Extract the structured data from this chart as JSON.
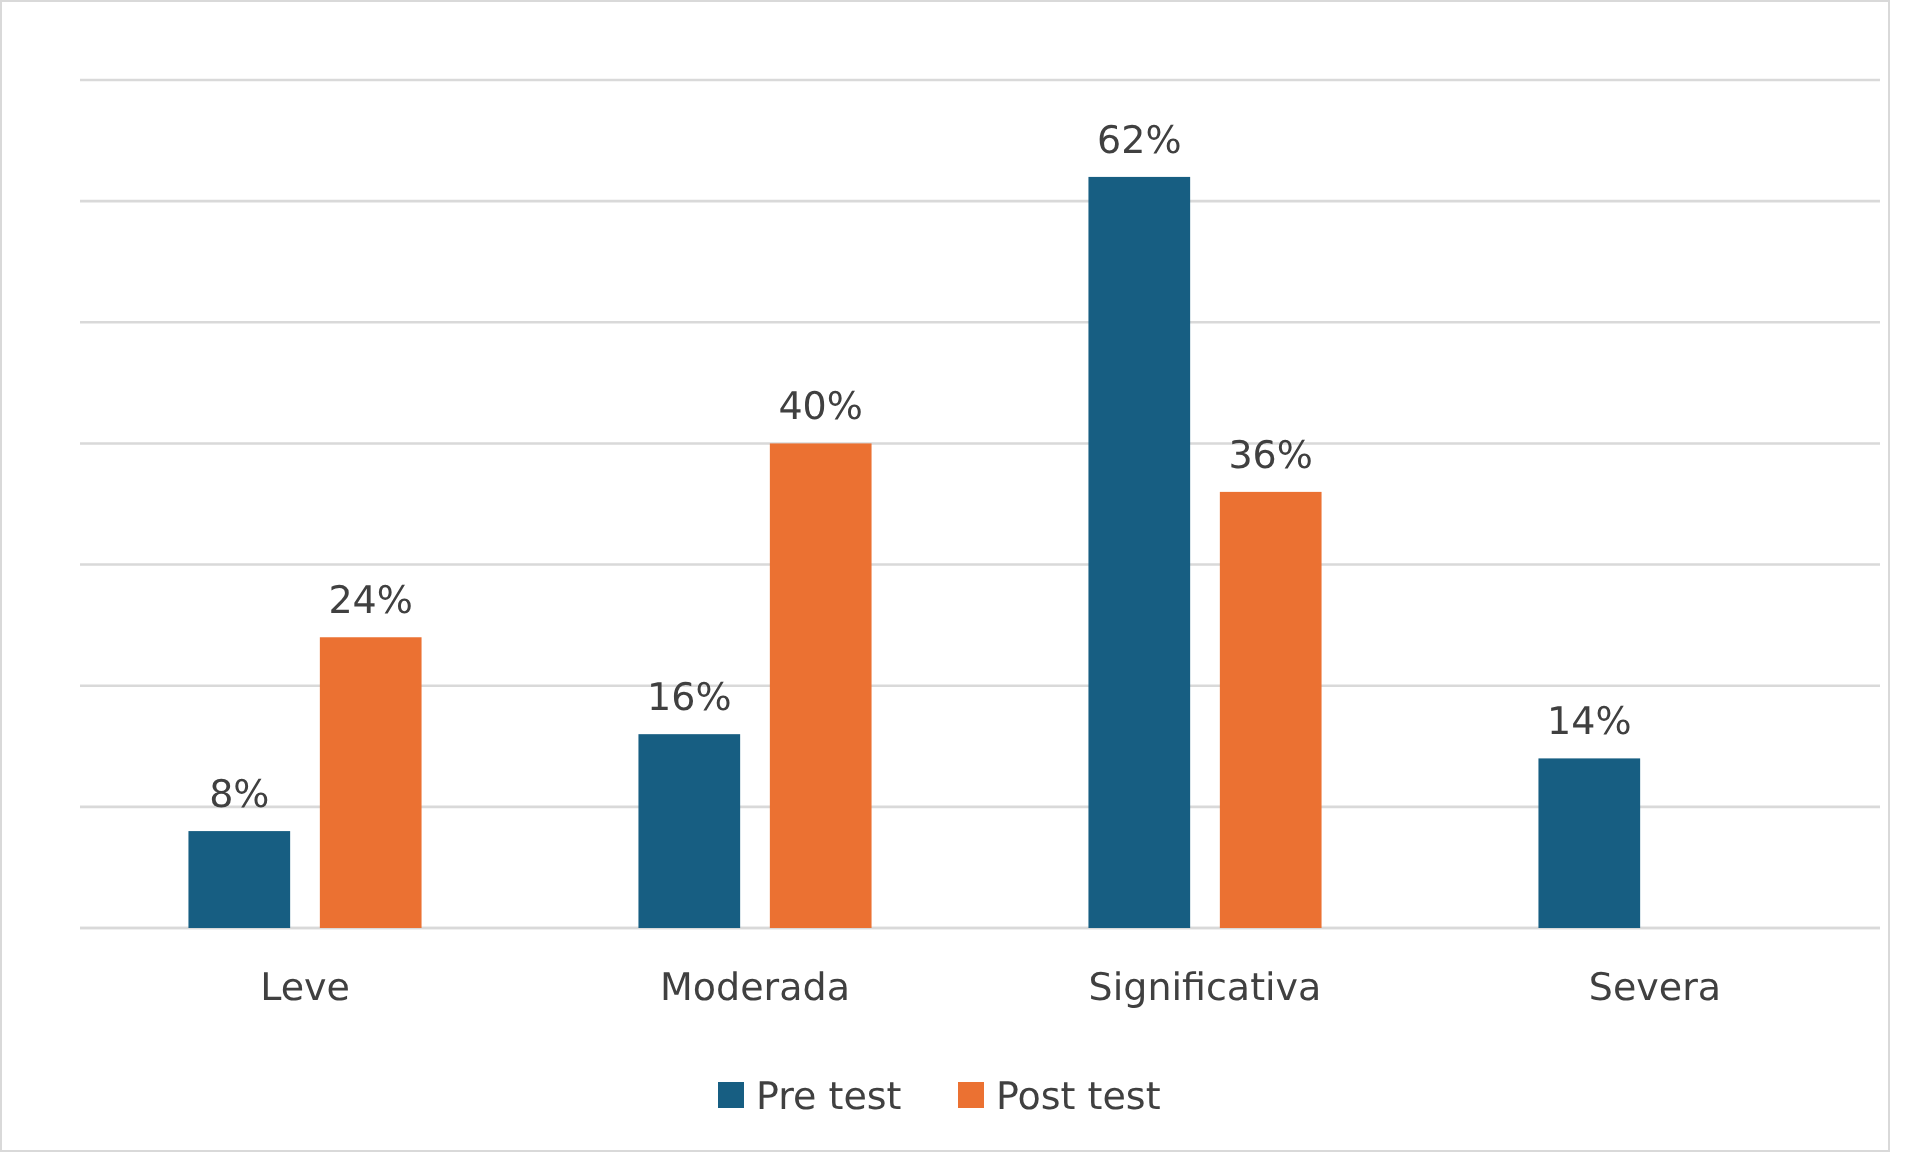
{
  "chart_data": {
    "type": "bar",
    "categories": [
      "Leve",
      "Moderada",
      "Significativa",
      "Severa"
    ],
    "series": [
      {
        "name": "Pre test",
        "color": "#175e82",
        "values": [
          8,
          16,
          62,
          14
        ],
        "value_labels": [
          "8%",
          "16%",
          "62%",
          "14%"
        ]
      },
      {
        "name": "Post test",
        "color": "#eb7132",
        "values": [
          24,
          40,
          36,
          null
        ],
        "value_labels": [
          "24%",
          "40%",
          "36%",
          null
        ]
      }
    ],
    "ylim": [
      0,
      70
    ],
    "yticks": [
      {
        "value": 0,
        "label": null
      },
      {
        "value": 10,
        "label": null
      },
      {
        "value": 20,
        "label": null
      },
      {
        "value": 30,
        "label": null
      },
      {
        "value": 40,
        "label": null
      },
      {
        "value": 50,
        "label": null
      },
      {
        "value": 60,
        "label": null
      },
      {
        "value": 70,
        "label": null
      }
    ],
    "grid": "y",
    "tick_labels": "x",
    "legend": "bottom"
  }
}
